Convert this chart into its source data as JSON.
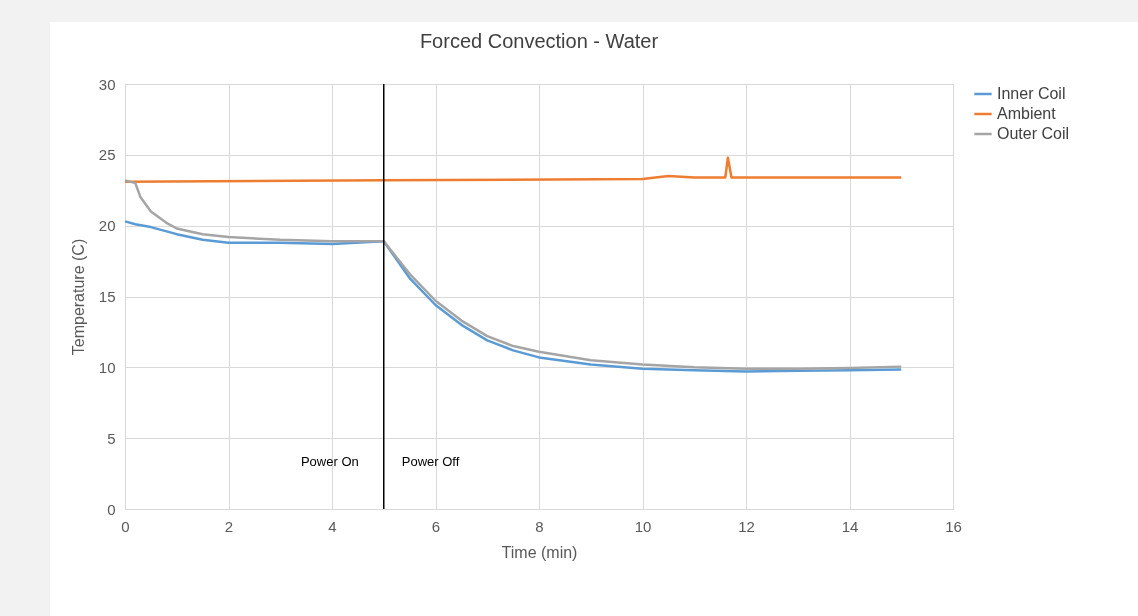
{
  "chart_data": {
    "type": "line",
    "title": "Forced Convection - Water",
    "xlabel": "Time (min)",
    "ylabel": "Temperature (C)",
    "xlim": [
      0,
      16
    ],
    "xticks": [
      0,
      2,
      4,
      6,
      8,
      10,
      12,
      14,
      16
    ],
    "ylim": [
      0,
      30
    ],
    "yticks": [
      0,
      5,
      10,
      15,
      20,
      25,
      30
    ],
    "grid": true,
    "legend": "right",
    "marker": "none",
    "ref_lines": [
      {
        "axis": "x",
        "value": 5,
        "color": "#000000"
      }
    ],
    "annotations": [
      "Power On",
      "Power Off"
    ],
    "series": [
      {
        "name": "Inner Coil",
        "color": "#5b9bd5",
        "x": [
          0,
          0.2,
          0.5,
          1,
          1.5,
          2,
          3,
          4,
          5,
          5.5,
          6,
          6.5,
          7,
          7.5,
          8,
          9,
          10,
          11,
          12,
          13,
          14,
          15
        ],
        "values": [
          20.3,
          20.1,
          19.9,
          19.4,
          19.0,
          18.8,
          18.8,
          18.7,
          18.9,
          16.3,
          14.4,
          13.0,
          11.9,
          11.2,
          10.7,
          10.2,
          9.9,
          9.8,
          9.7,
          9.75,
          9.8,
          9.85
        ]
      },
      {
        "name": "Ambient",
        "color": "#ed7d31",
        "x": [
          0,
          5,
          10,
          10.5,
          11,
          11.6,
          11.65,
          11.72,
          13,
          15
        ],
        "values": [
          23.1,
          23.2,
          23.3,
          23.5,
          23.4,
          23.4,
          24.8,
          23.4,
          23.4,
          23.4
        ]
      },
      {
        "name": "Outer Coil",
        "color": "#a5a5a5",
        "x": [
          0,
          0.2,
          0.3,
          0.5,
          0.8,
          1,
          1.5,
          2,
          3,
          4,
          5,
          5.5,
          6,
          6.5,
          7,
          7.5,
          8,
          9,
          10,
          11,
          12,
          13,
          14,
          15
        ],
        "values": [
          23.2,
          23.0,
          22.0,
          21.0,
          20.2,
          19.8,
          19.4,
          19.2,
          19.0,
          18.9,
          18.9,
          16.6,
          14.7,
          13.3,
          12.2,
          11.5,
          11.1,
          10.5,
          10.2,
          10.0,
          9.9,
          9.9,
          9.95,
          10.05
        ]
      }
    ]
  }
}
